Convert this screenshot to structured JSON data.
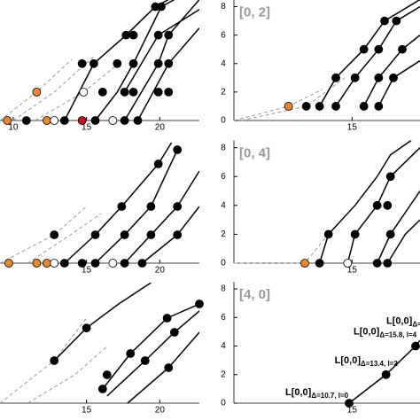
{
  "chart_data": [
    {
      "type": "scatter",
      "xlim": [
        9.1,
        22.7
      ],
      "ylim": [
        0,
        8.5
      ],
      "xticks": [
        10,
        15,
        20
      ],
      "lines": [
        {
          "dash": true,
          "color": "#999999",
          "x": [
            9.1,
            11.6,
            14.0
          ],
          "y": [
            0.0,
            2.0,
            4.3
          ]
        },
        {
          "dash": true,
          "color": "#999999",
          "x": [
            10.0,
            12.8,
            15.5
          ],
          "y": [
            0,
            2.0,
            4.5
          ]
        },
        {
          "dash": true,
          "color": "#999999",
          "x": [
            11.5,
            14.8,
            17.2
          ],
          "y": [
            0,
            2.0,
            4.0
          ]
        },
        {
          "dash": false,
          "color": "#000000",
          "x": [
            13.5,
            15.5,
            17.7,
            19.7,
            20.6
          ],
          "y": [
            0,
            4.0,
            6.0,
            8.0,
            8.5
          ]
        },
        {
          "dash": false,
          "color": "#000000",
          "x": [
            15.6,
            17.1,
            18.2,
            20.1,
            21.0
          ],
          "y": [
            0,
            2.0,
            4.0,
            8.0,
            8.5
          ]
        },
        {
          "dash": false,
          "color": "#000000",
          "x": [
            17.6,
            19.9,
            20.6,
            22.7
          ],
          "y": [
            0,
            4.0,
            6.0,
            8.5
          ]
        },
        {
          "dash": false,
          "color": "#000000",
          "x": [
            18.5,
            20.6,
            22.7
          ],
          "y": [
            0,
            4.0,
            6.5
          ]
        },
        {
          "dash": false,
          "color": "#000000",
          "x": [
            17.6,
            19.9,
            22.7
          ],
          "y": [
            2.0,
            6.0,
            7.8
          ]
        }
      ],
      "series": [
        {
          "color": "#e8892b",
          "x": [
            9.6,
            11.6,
            12.3
          ],
          "y": [
            0,
            2,
            0
          ]
        },
        {
          "color": "#ffffff",
          "x": [
            12.8,
            14.8,
            16.8
          ],
          "y": [
            0,
            2,
            0
          ]
        },
        {
          "color": "#c8141e",
          "x": [
            14.7
          ],
          "y": [
            0
          ]
        },
        {
          "color": "#000000",
          "x": [
            10.9,
            13.5,
            15.6,
            17.6,
            18.5,
            16.1,
            17.6,
            18.2,
            19.9,
            20.6,
            14.7,
            15.5,
            17.1,
            18.2,
            19.9,
            20.6,
            17.7,
            18.2,
            19.9,
            20.6,
            19.7,
            20.1
          ],
          "y": [
            0,
            0,
            0,
            0,
            0,
            2,
            2,
            2,
            2,
            2,
            4,
            4,
            4,
            4,
            4,
            4,
            6,
            6,
            6,
            6,
            8,
            8
          ]
        }
      ]
    },
    {
      "type": "scatter",
      "title": "[0, 2]",
      "xlim": [
        7,
        19.6
      ],
      "ylim": [
        0,
        8.5
      ],
      "xticks": [
        15
      ],
      "yticks": [
        0,
        2,
        4,
        6,
        8
      ],
      "lines": [
        {
          "dash": true,
          "color": "#999999",
          "x": [
            7.0,
            10.7,
            13.0
          ],
          "y": [
            0,
            1.0,
            2.2
          ]
        },
        {
          "dash": true,
          "color": "#999999",
          "x": [
            7.5,
            11.9,
            14.5
          ],
          "y": [
            0,
            1.0,
            3.0
          ]
        },
        {
          "dash": false,
          "color": "#000000",
          "x": [
            12.8,
            13.9,
            15.8,
            17.2,
            19.6
          ],
          "y": [
            1.0,
            3.0,
            5.0,
            7.0,
            8.5
          ]
        },
        {
          "dash": false,
          "color": "#000000",
          "x": [
            13.9,
            15.2,
            16.8,
            18.0,
            19.6
          ],
          "y": [
            1.0,
            3.0,
            5.0,
            7.0,
            8.0
          ]
        },
        {
          "dash": false,
          "color": "#000000",
          "x": [
            15.8,
            16.8,
            18.4,
            19.6
          ],
          "y": [
            1.0,
            3.0,
            5.0,
            6.0
          ]
        },
        {
          "dash": false,
          "color": "#000000",
          "x": [
            16.8,
            17.8,
            19.6
          ],
          "y": [
            1.0,
            3.0,
            4.2
          ]
        }
      ],
      "series": [
        {
          "color": "#e8892b",
          "x": [
            10.7
          ],
          "y": [
            1
          ]
        },
        {
          "color": "#000000",
          "x": [
            11.9,
            12.8,
            13.9,
            15.8,
            16.8,
            13.9,
            15.2,
            16.8,
            17.8,
            15.8,
            16.8,
            18.4,
            17.2,
            18.0
          ],
          "y": [
            1,
            1,
            1,
            1,
            1,
            3,
            3,
            3,
            3,
            5,
            5,
            5,
            7,
            7
          ]
        }
      ]
    },
    {
      "type": "scatter",
      "xlim": [
        9.1,
        22.7
      ],
      "ylim": [
        0,
        8.5
      ],
      "xticks": [
        15,
        20
      ],
      "lines": [
        {
          "dash": true,
          "color": "#999999",
          "x": [
            9.1,
            12.8,
            15.0
          ],
          "y": [
            0,
            2.0,
            4.0
          ]
        },
        {
          "dash": true,
          "color": "#999999",
          "x": [
            11.0,
            13.9,
            16.0
          ],
          "y": [
            0,
            2.0,
            3.5
          ]
        },
        {
          "dash": false,
          "color": "#000000",
          "x": [
            13.5,
            15.6,
            17.4,
            19.9,
            20.8
          ],
          "y": [
            0,
            2.0,
            4.0,
            7.0,
            8.5
          ]
        },
        {
          "dash": false,
          "color": "#000000",
          "x": [
            15.6,
            17.6,
            19.4,
            21.2
          ],
          "y": [
            0,
            2.0,
            4.0,
            8.0
          ]
        },
        {
          "dash": false,
          "color": "#000000",
          "x": [
            17.6,
            19.4,
            21.2,
            22.7
          ],
          "y": [
            0,
            2.0,
            4.0,
            6.5
          ]
        },
        {
          "dash": false,
          "color": "#000000",
          "x": [
            18.8,
            21.2,
            22.7
          ],
          "y": [
            0,
            2.0,
            4.0
          ]
        }
      ],
      "series": [
        {
          "color": "#e8892b",
          "x": [
            9.7,
            11.6,
            12.3
          ],
          "y": [
            0,
            0,
            0
          ]
        },
        {
          "color": "#ffffff",
          "x": [
            12.8,
            16.8
          ],
          "y": [
            0,
            0
          ]
        },
        {
          "color": "#000000",
          "x": [
            13.5,
            14.7,
            15.6,
            17.6,
            18.8,
            12.8,
            15.6,
            17.6,
            19.4,
            21.2,
            17.4,
            19.4,
            21.2,
            19.9,
            21.2
          ],
          "y": [
            0,
            0,
            0,
            0,
            0,
            2,
            2,
            2,
            2,
            2,
            4,
            4,
            4,
            7,
            8
          ]
        }
      ]
    },
    {
      "type": "scatter",
      "title": "[0, 4]",
      "xlim": [
        7,
        19.6
      ],
      "ylim": [
        0,
        8.5
      ],
      "xticks": [
        15
      ],
      "yticks": [
        0,
        2,
        4,
        6,
        8
      ],
      "lines": [
        {
          "dash": true,
          "color": "#999999",
          "x": [
            7.0,
            11.8,
            13.4
          ],
          "y": [
            0,
            0,
            2.0
          ]
        },
        {
          "dash": false,
          "color": "#000000",
          "x": [
            12.8,
            13.4,
            15.2,
            16.7,
            17.6,
            19.0
          ],
          "y": [
            0,
            2.0,
            4.0,
            6.0,
            7.5,
            8.5
          ]
        },
        {
          "dash": false,
          "color": "#000000",
          "x": [
            14.7,
            15.2,
            16.7,
            17.6,
            19.6
          ],
          "y": [
            0,
            2.0,
            4.0,
            6.0,
            8.0
          ]
        },
        {
          "dash": false,
          "color": "#000000",
          "x": [
            16.7,
            17.6,
            19.6
          ],
          "y": [
            0,
            2.0,
            5.0
          ]
        },
        {
          "dash": false,
          "color": "#000000",
          "x": [
            17.4,
            18.6,
            19.6
          ],
          "y": [
            0,
            2.0,
            3.0
          ]
        }
      ],
      "series": [
        {
          "color": "#e8892b",
          "x": [
            11.8
          ],
          "y": [
            0
          ]
        },
        {
          "color": "#ffffff",
          "x": [
            14.7
          ],
          "y": [
            0
          ]
        },
        {
          "color": "#000000",
          "x": [
            12.8,
            16.7,
            17.4,
            13.4,
            15.2,
            17.6,
            16.7,
            17.4,
            17.6
          ],
          "y": [
            0,
            0,
            0,
            2,
            2,
            2,
            4,
            4,
            6
          ]
        }
      ]
    },
    {
      "type": "scatter",
      "xlim": [
        9.1,
        22.7
      ],
      "ylim": [
        0,
        8.5
      ],
      "xticks": [
        15,
        20
      ],
      "lines": [
        {
          "dash": true,
          "color": "#999999",
          "x": [
            9.1,
            12.8,
            15.0
          ],
          "y": [
            0,
            3.0,
            6.0
          ]
        },
        {
          "dash": true,
          "color": "#999999",
          "x": [
            11.0,
            14.2,
            16.4
          ],
          "y": [
            0,
            2.0,
            4.0
          ]
        },
        {
          "dash": false,
          "color": "#000000",
          "x": [
            12.8,
            15.0,
            17.2,
            19.4
          ],
          "y": [
            3.0,
            5.3,
            7.0,
            8.5
          ]
        },
        {
          "dash": false,
          "color": "#000000",
          "x": [
            16.1,
            18.0,
            20.5,
            22.7
          ],
          "y": [
            1.0,
            3.5,
            6.0,
            7.0
          ]
        },
        {
          "dash": false,
          "color": "#000000",
          "x": [
            16.4,
            19.0,
            21.0,
            22.7
          ],
          "y": [
            0.5,
            3.0,
            5.0,
            6.5
          ]
        },
        {
          "dash": false,
          "color": "#000000",
          "x": [
            17.8,
            20.6,
            22.7
          ],
          "y": [
            0,
            2.5,
            5.0
          ]
        }
      ],
      "series": [
        {
          "color": "#000000",
          "x": [
            12.8,
            15.0,
            16.1,
            16.4,
            18.0,
            19.0,
            20.5,
            20.6,
            21.0,
            22.7
          ],
          "y": [
            3,
            5.3,
            1,
            2,
            3.5,
            3,
            6,
            2.5,
            5,
            7
          ]
        }
      ]
    },
    {
      "type": "scatter",
      "title": "[4, 0]",
      "xlim": [
        7,
        19.6
      ],
      "ylim": [
        0,
        8.5
      ],
      "xticks": [
        15
      ],
      "yticks": [
        0,
        2,
        4,
        6,
        8
      ],
      "lines": [
        {
          "dash": false,
          "color": "#000000",
          "x": [
            14.8,
            17.3,
            19.3,
            19.6
          ],
          "y": [
            0,
            2.0,
            4.0,
            4.4
          ]
        }
      ],
      "series": [
        {
          "color": "#000000",
          "x": [
            14.8,
            17.3,
            19.3
          ],
          "y": [
            0,
            2,
            4
          ]
        }
      ],
      "annotations": [
        {
          "text": "L[0,0]",
          "sub": "Δ=10.7, l=0"
        },
        {
          "text": "L[0,0]",
          "sub": "Δ=13.4, l=2"
        },
        {
          "text": "L[0,0]",
          "sub": "Δ=15.8, l=4"
        },
        {
          "text": "L[0,0]",
          "sub": "Δ="
        }
      ]
    }
  ]
}
